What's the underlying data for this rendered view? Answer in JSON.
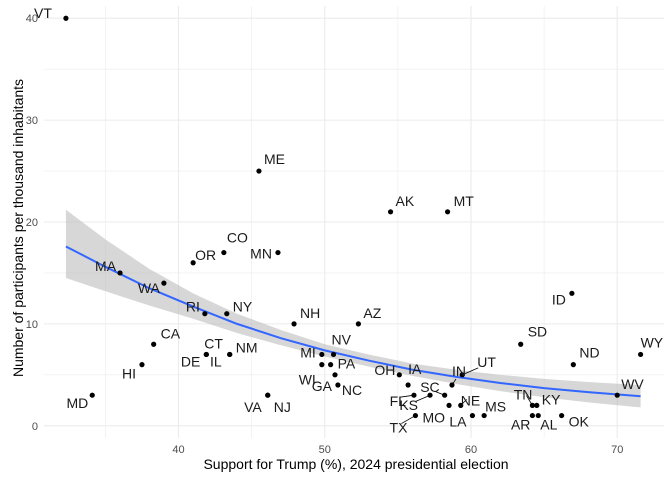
{
  "chart_data": {
    "type": "scatter",
    "xlabel": "Support for Trump (%), 2024 presidential election",
    "ylabel": "Number of participants per thousand inhabitants",
    "xlim": [
      30.8,
      73.2
    ],
    "ylim": [
      -1.2,
      41.2
    ],
    "xticks": [
      40,
      50,
      60,
      70
    ],
    "yticks": [
      0,
      10,
      20,
      30,
      40
    ],
    "grid": true,
    "legend": "none",
    "colors": {
      "points": "#000000",
      "trend": "#3366ff",
      "band": "#bdbdbd",
      "grid": "#ebebeb",
      "leader": "#000000"
    },
    "points": [
      {
        "label": "VT",
        "x": 32.3,
        "y": 40
      },
      {
        "label": "MD",
        "x": 34.1,
        "y": 3
      },
      {
        "label": "MA",
        "x": 36.0,
        "y": 15
      },
      {
        "label": "HI",
        "x": 37.5,
        "y": 6
      },
      {
        "label": "CA",
        "x": 38.3,
        "y": 8
      },
      {
        "label": "WA",
        "x": 39.0,
        "y": 14
      },
      {
        "label": "OR",
        "x": 41.0,
        "y": 16
      },
      {
        "label": "RI",
        "x": 41.8,
        "y": 11
      },
      {
        "label": "CT",
        "x": 41.9,
        "y": 7
      },
      {
        "label": "DE",
        "x": 41.9,
        "y": 7
      },
      {
        "label": "IL",
        "x": 43.5,
        "y": 7
      },
      {
        "label": "CO",
        "x": 43.1,
        "y": 17
      },
      {
        "label": "NM",
        "x": 43.5,
        "y": 7
      },
      {
        "label": "NY",
        "x": 43.3,
        "y": 11
      },
      {
        "label": "ME",
        "x": 45.5,
        "y": 25
      },
      {
        "label": "NJ",
        "x": 46.1,
        "y": 3
      },
      {
        "label": "VA",
        "x": 46.1,
        "y": 3
      },
      {
        "label": "MN",
        "x": 46.8,
        "y": 17
      },
      {
        "label": "NH",
        "x": 47.9,
        "y": 10
      },
      {
        "label": "GA",
        "x": 50.7,
        "y": 5
      },
      {
        "label": "MI",
        "x": 49.8,
        "y": 7
      },
      {
        "label": "WI",
        "x": 49.8,
        "y": 6
      },
      {
        "label": "NC",
        "x": 50.9,
        "y": 4
      },
      {
        "label": "PA",
        "x": 50.4,
        "y": 6
      },
      {
        "label": "NV",
        "x": 50.6,
        "y": 7
      },
      {
        "label": "AZ",
        "x": 52.3,
        "y": 10
      },
      {
        "label": "AK",
        "x": 54.5,
        "y": 21
      },
      {
        "label": "OH",
        "x": 55.1,
        "y": 5
      },
      {
        "label": "FL",
        "x": 56.1,
        "y": 3
      },
      {
        "label": "TX",
        "x": 56.2,
        "y": 1
      },
      {
        "label": "IA",
        "x": 55.7,
        "y": 4
      },
      {
        "label": "KS",
        "x": 57.2,
        "y": 3
      },
      {
        "label": "MO",
        "x": 58.5,
        "y": 2
      },
      {
        "label": "MT",
        "x": 58.4,
        "y": 21
      },
      {
        "label": "SC",
        "x": 58.2,
        "y": 3
      },
      {
        "label": "IN",
        "x": 58.7,
        "y": 4
      },
      {
        "label": "NE",
        "x": 59.3,
        "y": 2
      },
      {
        "label": "UT",
        "x": 59.4,
        "y": 5
      },
      {
        "label": "LA",
        "x": 60.1,
        "y": 1
      },
      {
        "label": "MS",
        "x": 60.9,
        "y": 1
      },
      {
        "label": "SD",
        "x": 63.4,
        "y": 8
      },
      {
        "label": "TN",
        "x": 64.2,
        "y": 2
      },
      {
        "label": "AR",
        "x": 64.2,
        "y": 1
      },
      {
        "label": "KY",
        "x": 64.5,
        "y": 2
      },
      {
        "label": "AL",
        "x": 64.6,
        "y": 1
      },
      {
        "label": "OK",
        "x": 66.2,
        "y": 1
      },
      {
        "label": "ID",
        "x": 66.9,
        "y": 13
      },
      {
        "label": "ND",
        "x": 67.0,
        "y": 6
      },
      {
        "label": "WV",
        "x": 70.0,
        "y": 3
      },
      {
        "label": "WY",
        "x": 71.6,
        "y": 7
      }
    ],
    "trend": [
      {
        "x": 32.3,
        "y": 17.6,
        "lo": 14.5,
        "hi": 21.2
      },
      {
        "x": 35,
        "y": 15.6,
        "lo": 13.2,
        "hi": 18.3
      },
      {
        "x": 38,
        "y": 13.5,
        "lo": 11.8,
        "hi": 15.4
      },
      {
        "x": 41,
        "y": 11.7,
        "lo": 10.5,
        "hi": 13.0
      },
      {
        "x": 44,
        "y": 10.0,
        "lo": 9.1,
        "hi": 11.0
      },
      {
        "x": 47,
        "y": 8.6,
        "lo": 7.9,
        "hi": 9.4
      },
      {
        "x": 50,
        "y": 7.4,
        "lo": 6.8,
        "hi": 8.0
      },
      {
        "x": 53,
        "y": 6.4,
        "lo": 5.8,
        "hi": 7.0
      },
      {
        "x": 56,
        "y": 5.5,
        "lo": 4.9,
        "hi": 6.1
      },
      {
        "x": 59,
        "y": 4.8,
        "lo": 4.1,
        "hi": 5.5
      },
      {
        "x": 62,
        "y": 4.2,
        "lo": 3.4,
        "hi": 5.0
      },
      {
        "x": 65,
        "y": 3.7,
        "lo": 2.8,
        "hi": 4.6
      },
      {
        "x": 68,
        "y": 3.3,
        "lo": 2.3,
        "hi": 4.3
      },
      {
        "x": 71.6,
        "y": 2.9,
        "lo": 1.8,
        "hi": 4.0
      }
    ]
  }
}
